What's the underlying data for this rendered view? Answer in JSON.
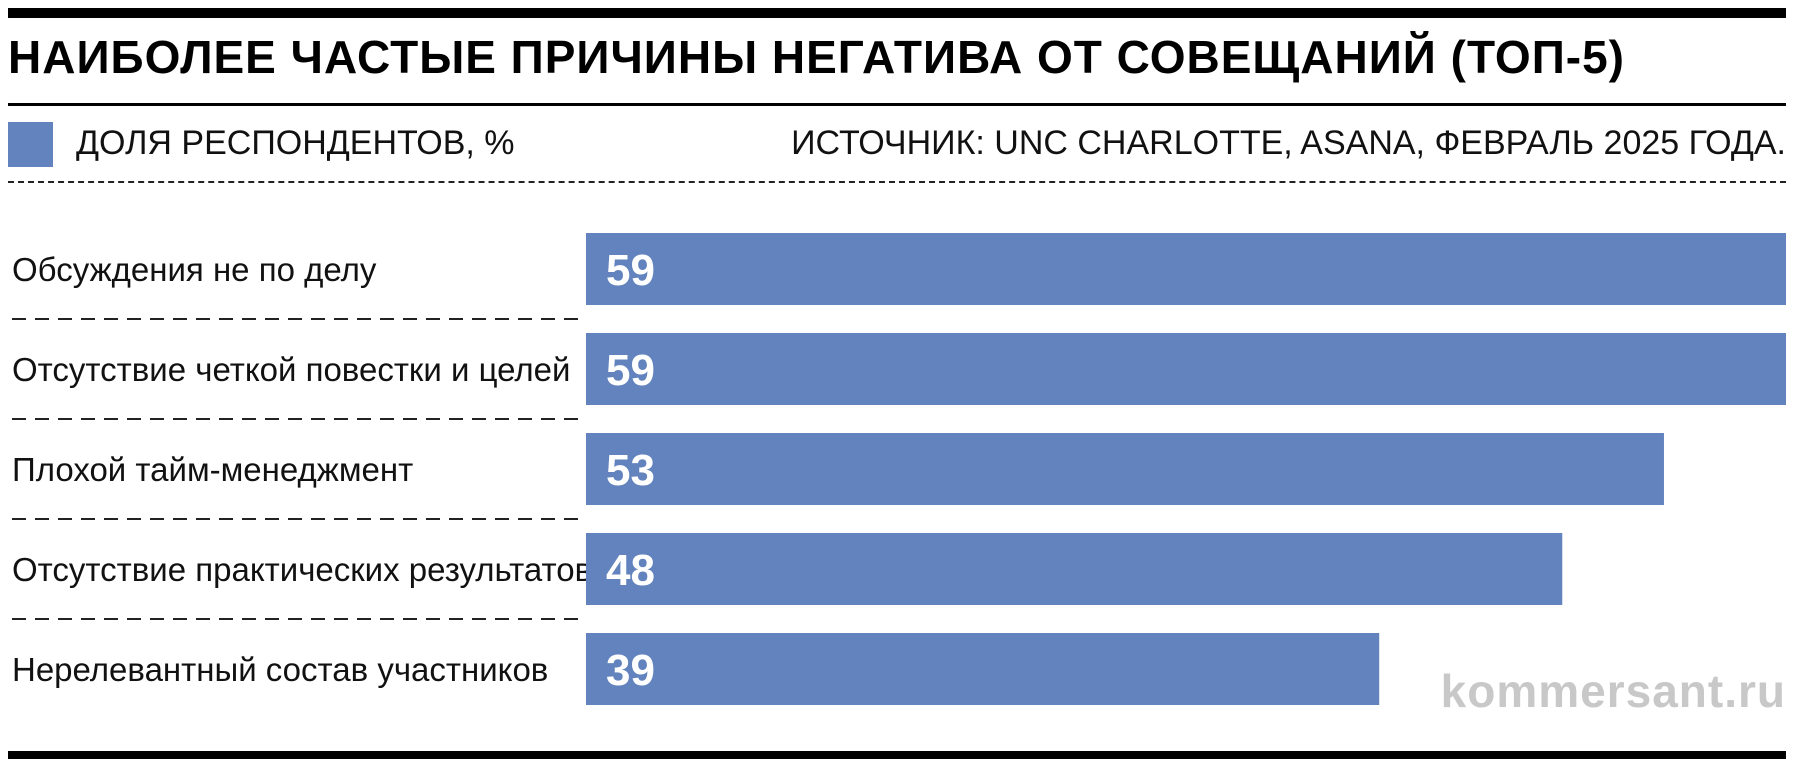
{
  "header": {
    "title": "НАИБОЛЕЕ ЧАСТЫЕ ПРИЧИНЫ НЕГАТИВА ОТ СОВЕЩАНИЙ (ТОП-5)",
    "legend_label": "ДОЛЯ РЕСПОНДЕНТОВ, %",
    "source": "ИСТОЧНИК: UNC CHARLOTTE, ASANA, ФЕВРАЛЬ 2025 ГОДА."
  },
  "watermark": "kommersant.ru",
  "colors": {
    "bar": "#6283bd",
    "rule": "#000000",
    "watermark": "#c8c8c8"
  },
  "chart_data": {
    "type": "bar",
    "orientation": "horizontal",
    "title": "НАИБОЛЕЕ ЧАСТЫЕ ПРИЧИНЫ НЕГАТИВА ОТ СОВЕЩАНИЙ (ТОП-5)",
    "categories": [
      "Обсуждения не по делу",
      "Отсутствие четкой повестки и целей",
      "Плохой тайм-менеджмент",
      "Отсутствие практических результатов",
      "Нерелевантный состав участников"
    ],
    "series": [
      {
        "name": "ДОЛЯ РЕСПОНДЕНТОВ, %",
        "values": [
          59,
          59,
          53,
          48,
          39
        ]
      }
    ],
    "xlim": [
      0,
      59
    ],
    "grid": false,
    "legend_position": "top-left"
  }
}
